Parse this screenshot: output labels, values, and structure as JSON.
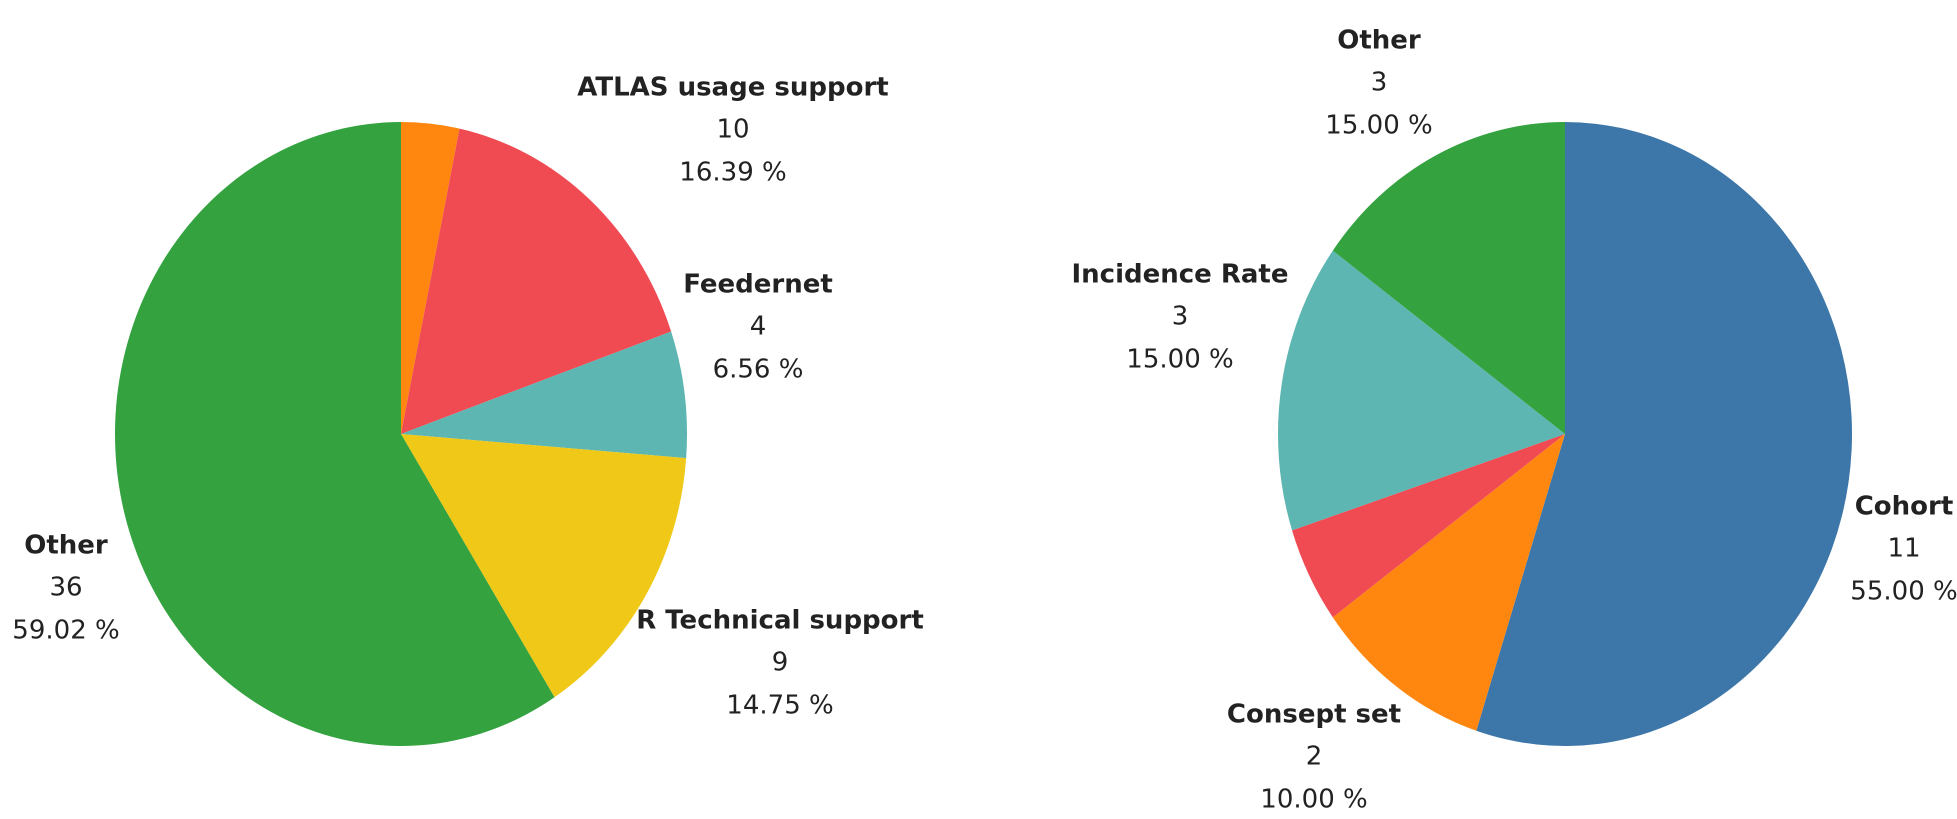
{
  "chart_data": [
    {
      "type": "pie",
      "categories": [
        null,
        "ATLAS usage support",
        "Feedernet",
        "R Technical support",
        "Other"
      ],
      "values": [
        2,
        10,
        4,
        9,
        36
      ],
      "percent_labels": [
        null,
        "16.39 %",
        "6.56 %",
        "14.75 %",
        "59.02 %"
      ],
      "colors": [
        "#ff870f",
        "#f04a53",
        "#5db6b1",
        "#f0c818",
        "#33a23f"
      ]
    },
    {
      "type": "pie",
      "categories": [
        "Cohort",
        "Consept set",
        null,
        "Incidence Rate",
        "Other"
      ],
      "values": [
        11,
        2,
        1,
        3,
        3
      ],
      "percent_labels": [
        "55.00 %",
        "10.00 %",
        null,
        "15.00 %",
        "15.00 %"
      ],
      "colors": [
        "#3d76a8",
        "#ff870f",
        "#f04a53",
        "#5db6b1",
        "#33a23f"
      ]
    }
  ]
}
